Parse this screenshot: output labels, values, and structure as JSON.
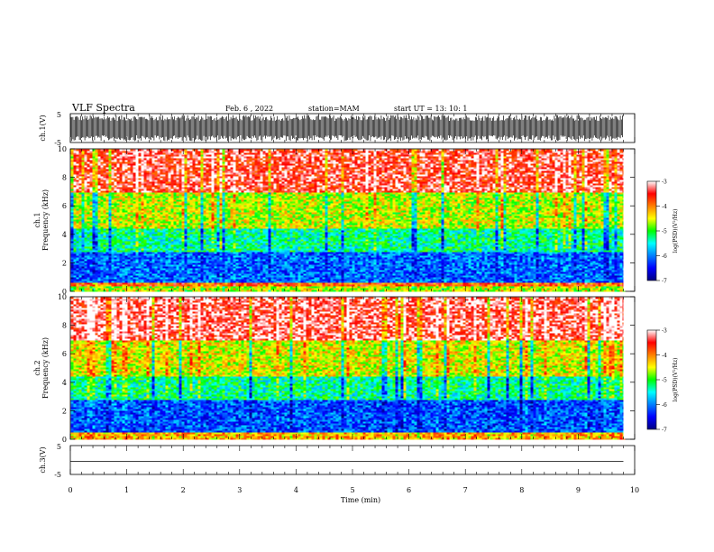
{
  "header": {
    "title": "VLF Spectra",
    "date": "Feb. 6 , 2022",
    "station": "station=MAM",
    "start": "start UT =  13: 10: 1"
  },
  "chart_data": [
    {
      "type": "line",
      "name": "ch1-waveform",
      "ylabel": "ch.1(V)",
      "ylim": [
        -5,
        5
      ],
      "yticks": [
        "5",
        "-5"
      ],
      "description_values": "dense waveform spanning about -4.5 to 4.5 V over 0 to 9.8 min"
    },
    {
      "type": "heatmap",
      "name": "ch1-spectrogram",
      "panel_label": "ch.1",
      "ylabel": "Frequency (kHz)",
      "ylim": [
        0,
        10
      ],
      "yticks": [
        "0",
        "2",
        "4",
        "6",
        "8",
        "10"
      ],
      "xlim": [
        0,
        10
      ],
      "data_extent_min": 9.8,
      "colorbar": {
        "label": "log(PSD)(V²/Hz)",
        "range": [
          -7,
          -3
        ],
        "ticks": [
          "-3",
          "-4",
          "-5",
          "-6",
          "-7"
        ]
      },
      "bands_khz": [
        {
          "from": 0,
          "to": 0.4,
          "level": -4.6
        },
        {
          "from": 0.4,
          "to": 0.7,
          "level": -3.8
        },
        {
          "from": 0.7,
          "to": 2.8,
          "level": -6.1
        },
        {
          "from": 2.8,
          "to": 4.5,
          "level": -5.3
        },
        {
          "from": 4.5,
          "to": 7.0,
          "level": -4.6
        },
        {
          "from": 7.0,
          "to": 10.0,
          "level": -3.4
        }
      ]
    },
    {
      "type": "heatmap",
      "name": "ch2-spectrogram",
      "panel_label": "ch.2",
      "ylabel": "Frequency (kHz)",
      "ylim": [
        0,
        10
      ],
      "yticks": [
        "0",
        "2",
        "4",
        "6",
        "8",
        "10"
      ],
      "xlim": [
        0,
        10
      ],
      "data_extent_min": 9.8,
      "colorbar": {
        "label": "log(PSD)(V²/Hz)",
        "range": [
          -7,
          -3
        ],
        "ticks": [
          "-3",
          "-4",
          "-5",
          "-6",
          "-7"
        ]
      },
      "bands_khz": [
        {
          "from": 0,
          "to": 0.5,
          "level": -4.2
        },
        {
          "from": 0.5,
          "to": 2.8,
          "level": -6.2
        },
        {
          "from": 2.8,
          "to": 4.5,
          "level": -5.3
        },
        {
          "from": 4.5,
          "to": 7.0,
          "level": -4.5
        },
        {
          "from": 7.0,
          "to": 10.0,
          "level": -3.3
        }
      ]
    },
    {
      "type": "line",
      "name": "ch3-waveform",
      "ylabel": "ch.3(V)",
      "ylim": [
        -5,
        5
      ],
      "yticks": [
        "5",
        "-5"
      ],
      "x": [
        0,
        9.8
      ],
      "y": [
        -0.5,
        -0.5
      ]
    }
  ],
  "xaxis": {
    "label": "Time (min)",
    "range": [
      0,
      10
    ],
    "ticks": [
      "0",
      "1",
      "2",
      "3",
      "4",
      "5",
      "6",
      "7",
      "8",
      "9",
      "10"
    ]
  }
}
